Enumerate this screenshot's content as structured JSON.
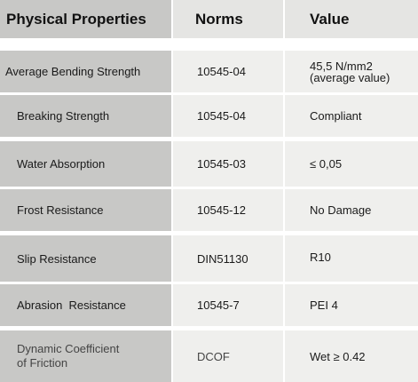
{
  "headers": {
    "property": "Physical Properties",
    "norms": "Norms",
    "value": "Value"
  },
  "rows": [
    {
      "property": "Average Bending Strength",
      "norm": "10545-04",
      "value_line1": "45,5 N/mm2",
      "value_line2": "(average value)"
    },
    {
      "property": "Breaking Strength",
      "norm": "10545-04",
      "value": "Compliant"
    },
    {
      "property": "Water Absorption",
      "norm": "10545-03",
      "value": "≤ 0,05"
    },
    {
      "property": "Frost Resistance",
      "norm": "10545-12",
      "value": "No Damage"
    },
    {
      "property": "Slip Resistance",
      "norm": "DIN51130",
      "value": "R10"
    },
    {
      "property": "Abrasion  Resistance",
      "norm": "10545-7",
      "value": "PEI 4"
    },
    {
      "property_line1": "Dynamic Coefficient",
      "property_line2": "of Friction",
      "norm": "DCOF",
      "value": "Wet ≥ 0.42"
    }
  ]
}
